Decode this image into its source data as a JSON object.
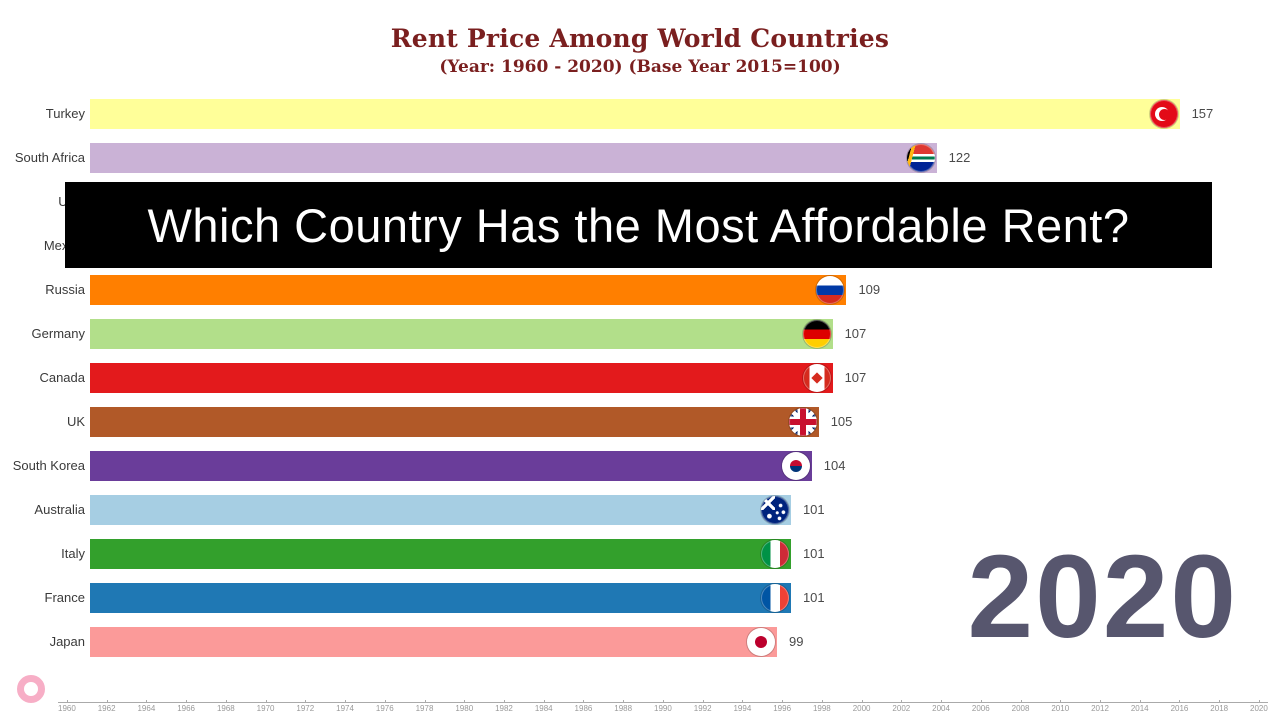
{
  "header": {
    "title": "Rent Price Among World Countries",
    "subtitle": "(Year: 1960 - 2020) (Base Year 2015=100)",
    "color": "#7A1F1F"
  },
  "banner": {
    "text": "Which Country Has the Most Affordable Rent?",
    "bg": "#000000",
    "fg": "#FFFFFF"
  },
  "year_display": "2020",
  "year_color": "#57566E",
  "chart": {
    "rows": [
      {
        "label": "Turkey",
        "value": 157,
        "color": "#ffff99",
        "flag": "turkey"
      },
      {
        "label": "South Africa",
        "value": 122,
        "color": "#cab2d6",
        "flag": "south-africa"
      },
      {
        "label": "USA",
        "value": null,
        "color": null,
        "flag": null
      },
      {
        "label": "Mexico",
        "value": null,
        "color": null,
        "flag": null
      },
      {
        "label": "Russia",
        "value": 109,
        "color": "#ff7f00",
        "flag": "russia"
      },
      {
        "label": "Germany",
        "value": 107,
        "color": "#b2df8a",
        "flag": "germany"
      },
      {
        "label": "Canada",
        "value": 107,
        "color": "#e31a1c",
        "flag": "canada"
      },
      {
        "label": "UK",
        "value": 105,
        "color": "#b15928",
        "flag": "uk"
      },
      {
        "label": "South Korea",
        "value": 104,
        "color": "#6a3d9a",
        "flag": "south-korea"
      },
      {
        "label": "Australia",
        "value": 101,
        "color": "#a6cee3",
        "flag": "australia"
      },
      {
        "label": "Italy",
        "value": 101,
        "color": "#33a02c",
        "flag": "italy"
      },
      {
        "label": "France",
        "value": 101,
        "color": "#1f78b4",
        "flag": "france"
      },
      {
        "label": "Japan",
        "value": 99,
        "color": "#fb9a99",
        "flag": "japan"
      }
    ]
  },
  "chart_data": {
    "type": "bar",
    "orientation": "horizontal",
    "title": "Rent Price Among World Countries",
    "subtitle": "(Year: 1960 - 2020) (Base Year 2015=100)",
    "current_year": "2020",
    "categories": [
      "Turkey",
      "South Africa",
      "USA",
      "Mexico",
      "Russia",
      "Germany",
      "Canada",
      "UK",
      "South Korea",
      "Australia",
      "Italy",
      "France",
      "Japan"
    ],
    "values": [
      157,
      122,
      null,
      null,
      109,
      107,
      107,
      105,
      104,
      101,
      101,
      101,
      99
    ],
    "bar_colors": [
      "#ffff99",
      "#cab2d6",
      null,
      null,
      "#ff7f00",
      "#b2df8a",
      "#e31a1c",
      "#b15928",
      "#6a3d9a",
      "#a6cee3",
      "#33a02c",
      "#1f78b4",
      "#fb9a99"
    ],
    "legend": "none",
    "grid": "off",
    "axis_tick_labels": [
      "1960",
      "1962",
      "1964",
      "1966",
      "1968",
      "1970",
      "1972",
      "1974",
      "1976",
      "1978",
      "1980",
      "1982",
      "1984",
      "1986",
      "1988",
      "1990",
      "1992",
      "1994",
      "1996",
      "1998",
      "2000",
      "2002",
      "2004",
      "2006",
      "2008",
      "2010",
      "2012",
      "2014",
      "2016",
      "2018",
      "2020"
    ]
  },
  "axis": {
    "ticks": [
      "1960",
      "1962",
      "1964",
      "1966",
      "1968",
      "1970",
      "1972",
      "1974",
      "1976",
      "1978",
      "1980",
      "1982",
      "1984",
      "1986",
      "1988",
      "1990",
      "1992",
      "1994",
      "1996",
      "1998",
      "2000",
      "2002",
      "2004",
      "2006",
      "2008",
      "2010",
      "2012",
      "2014",
      "2016",
      "2018",
      "2020"
    ]
  }
}
